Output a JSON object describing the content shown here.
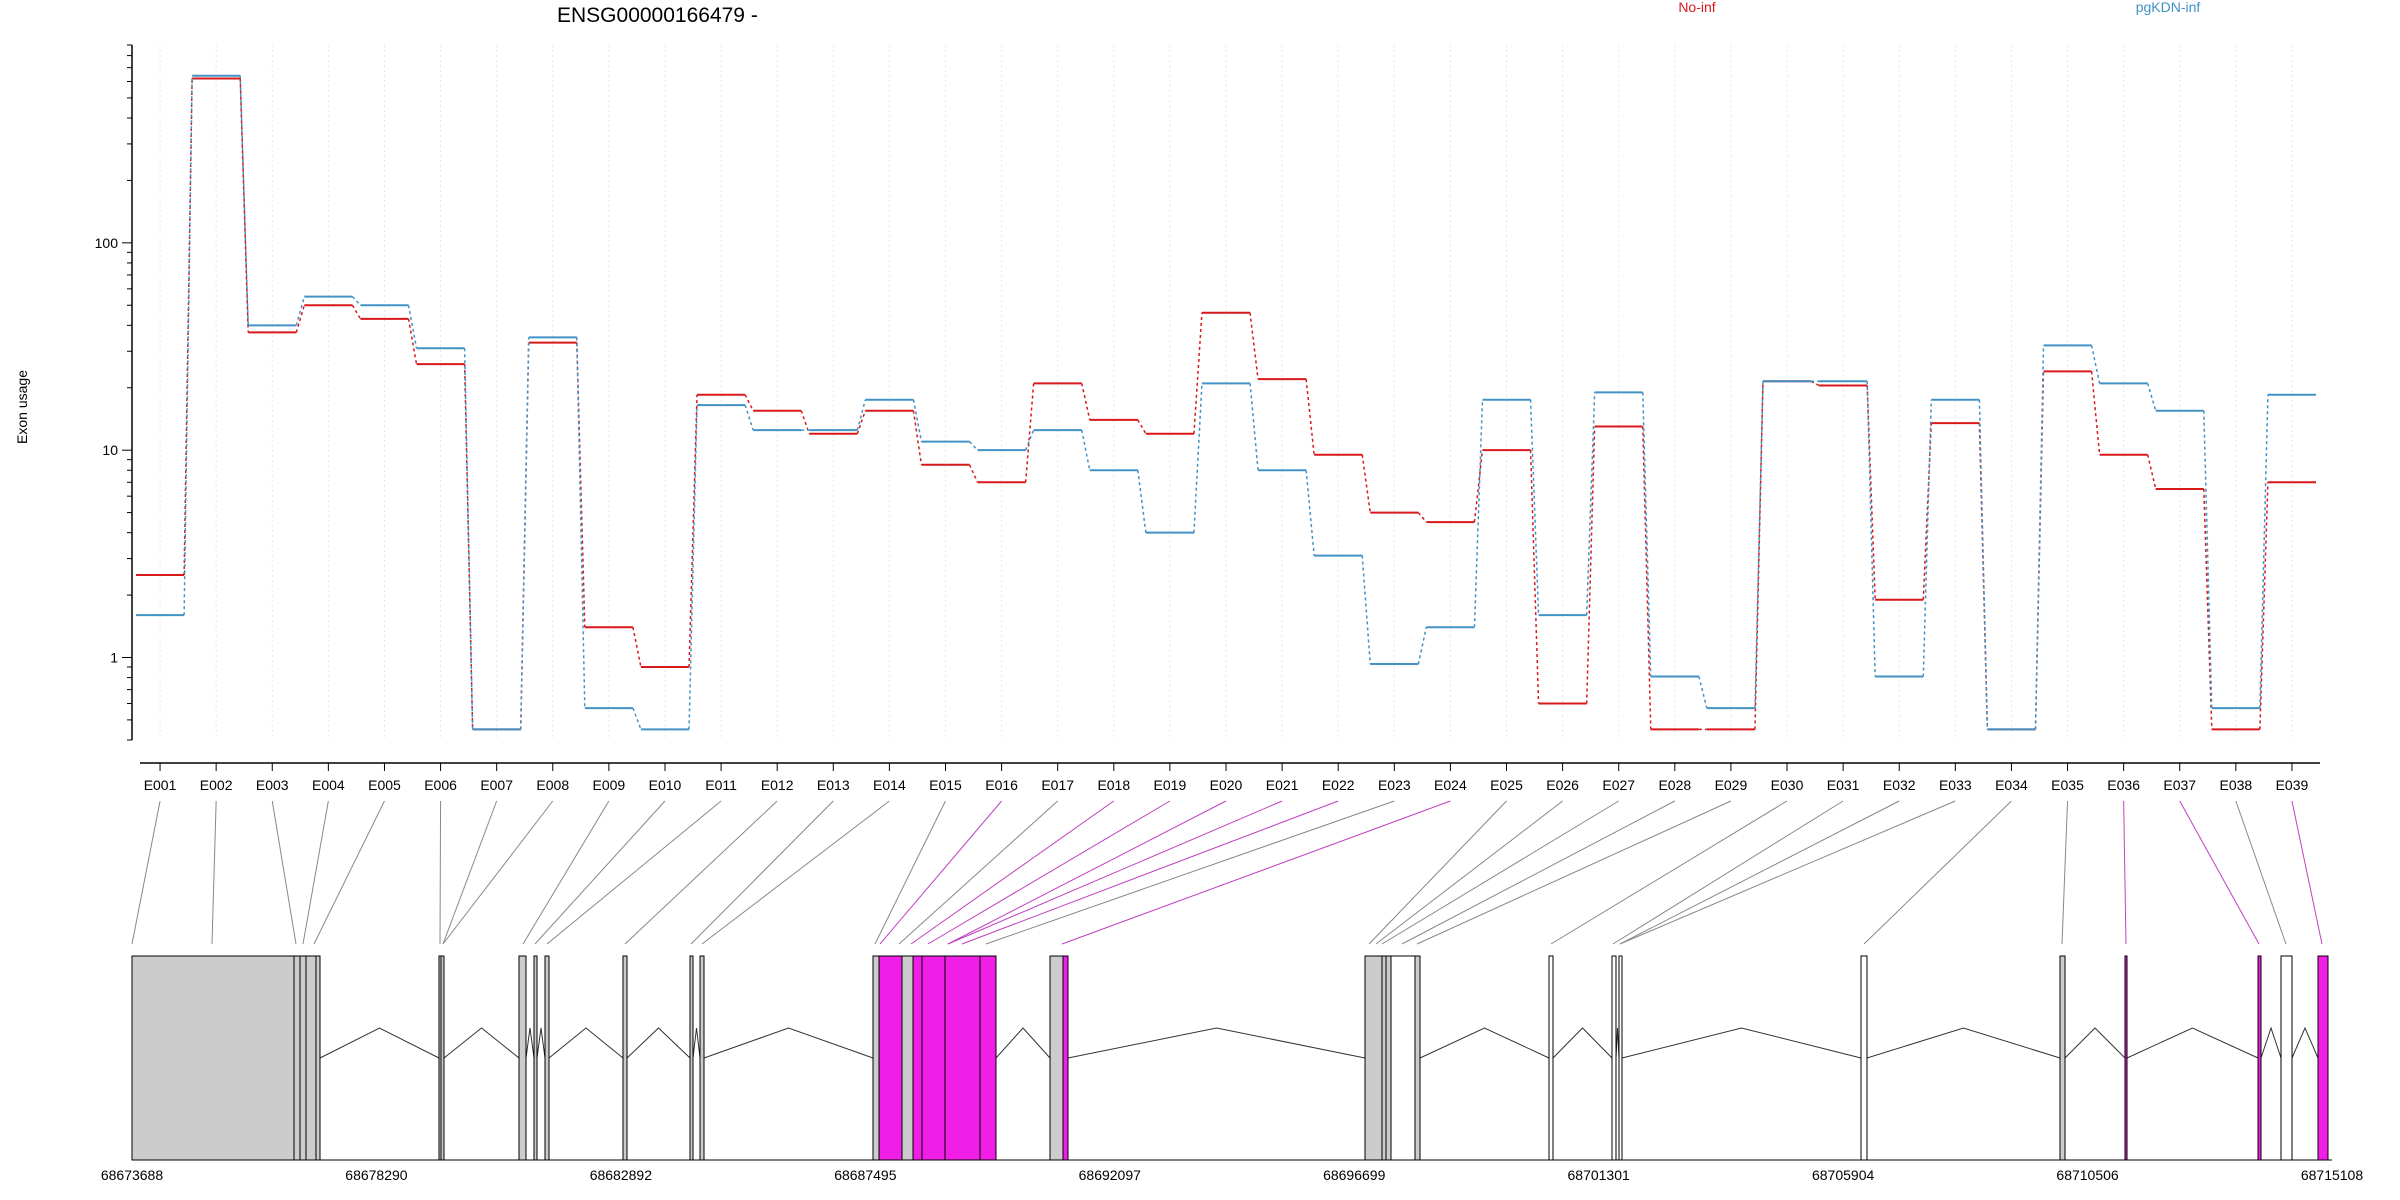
{
  "chart_data": {
    "type": "line",
    "title": "ENSG00000166479 -",
    "ylabel": "Exon usage",
    "yscale": "log",
    "ylim": [
      0.4,
      900
    ],
    "yticks": [
      1,
      10,
      100
    ],
    "ytick_labels": [
      "1",
      "10",
      "100"
    ],
    "grid": true,
    "legend_position": "top-right",
    "categories": [
      "E001",
      "E002",
      "E003",
      "E004",
      "E005",
      "E006",
      "E007",
      "E008",
      "E009",
      "E010",
      "E011",
      "E012",
      "E013",
      "E014",
      "E015",
      "E016",
      "E017",
      "E018",
      "E019",
      "E020",
      "E021",
      "E022",
      "E023",
      "E024",
      "E025",
      "E026",
      "E027",
      "E028",
      "E029",
      "E030",
      "E031",
      "E032",
      "E033",
      "E034",
      "E035",
      "E036",
      "E037",
      "E038",
      "E039"
    ],
    "series": [
      {
        "name": "No-inf",
        "color": "#d7191c",
        "values": [
          2.5,
          620,
          37,
          50,
          43,
          26,
          0.45,
          33,
          1.4,
          0.9,
          18.5,
          15.5,
          12,
          15.5,
          8.5,
          7,
          21,
          14,
          12,
          46,
          22,
          9.5,
          5,
          4.5,
          10,
          0.6,
          13,
          0.45,
          0.45,
          21.5,
          20.5,
          1.9,
          13.5,
          0.45,
          24,
          9.5,
          6.5,
          0.45,
          7
        ]
      },
      {
        "name": "pgKDN-inf",
        "color": "#4292c6",
        "values": [
          1.6,
          640,
          40,
          55,
          50,
          31,
          0.45,
          35,
          0.57,
          0.45,
          16.5,
          12.5,
          12.5,
          17.5,
          11,
          10,
          12.5,
          8,
          4,
          21,
          8,
          3.1,
          0.93,
          1.4,
          17.5,
          1.6,
          19,
          0.81,
          0.57,
          21.5,
          21.5,
          0.81,
          17.5,
          0.45,
          32,
          21,
          15.5,
          0.57,
          18.5
        ]
      }
    ],
    "gene_model": {
      "coordinate_ticks": [
        "68673688",
        "68678290",
        "68682892",
        "68687495",
        "68692097",
        "68696699",
        "68701301",
        "68705904",
        "68710506",
        "68715108"
      ],
      "exon_colors": {
        "default": "#cccccc",
        "highlighted": "#f01ee6",
        "empty": "#ffffff"
      }
    }
  }
}
